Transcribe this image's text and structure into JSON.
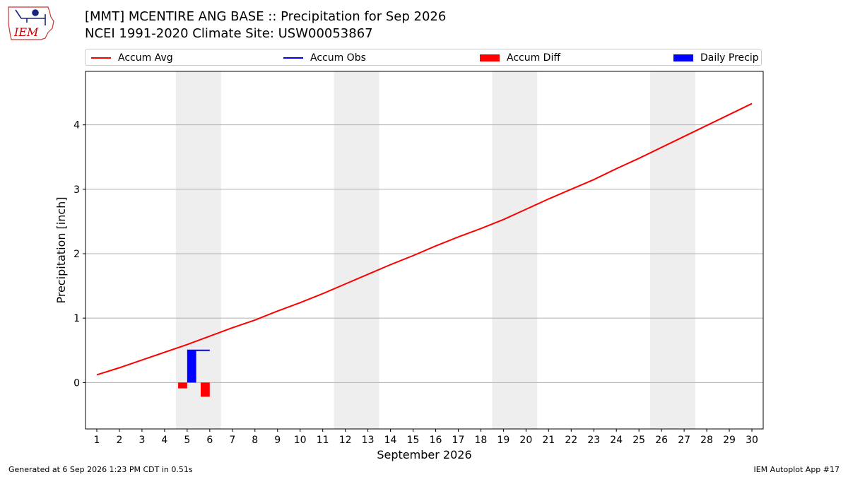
{
  "header": {
    "title_line1": "[MMT] MCENTIRE ANG BASE :: Precipitation for Sep 2026",
    "title_line2": "NCEI 1991-2020 Climate Site: USW00053867"
  },
  "logo": {
    "text": "IEM",
    "icon": "iem-iowa-weather-logo"
  },
  "legend": {
    "items": [
      {
        "label": "Accum Avg",
        "kind": "line",
        "color": "#ff0000"
      },
      {
        "label": "Accum Obs",
        "kind": "line",
        "color": "#0000ff"
      },
      {
        "label": "Accum Diff",
        "kind": "box",
        "color": "#ff0000"
      },
      {
        "label": "Daily Precip",
        "kind": "box",
        "color": "#0000ff"
      }
    ]
  },
  "footer": {
    "generated": "Generated at 6 Sep 2026 1:23 PM CDT in 0.51s",
    "app": "IEM Autoplot App #17"
  },
  "chart_data": {
    "type": "line",
    "ylabel": "Precipitation [inch]",
    "xlabel": "September 2026",
    "xlim": [
      0.5,
      30.5
    ],
    "ylim": [
      -0.72,
      4.83
    ],
    "x_ticks": [
      1,
      2,
      3,
      4,
      5,
      6,
      7,
      8,
      9,
      10,
      11,
      12,
      13,
      14,
      15,
      16,
      17,
      18,
      19,
      20,
      21,
      22,
      23,
      24,
      25,
      26,
      27,
      28,
      29,
      30
    ],
    "y_ticks": [
      0,
      1,
      2,
      3,
      4
    ],
    "grid": "horizontal",
    "legend_position": "top",
    "weekend_bands": [
      [
        4.5,
        6.5
      ],
      [
        11.5,
        13.5
      ],
      [
        18.5,
        20.5
      ],
      [
        25.5,
        27.5
      ]
    ],
    "accum_avg": {
      "name": "Accum Avg",
      "color": "#ff0000",
      "x": [
        1,
        2,
        3,
        4,
        5,
        6,
        7,
        8,
        9,
        10,
        11,
        12,
        13,
        14,
        15,
        16,
        17,
        18,
        19,
        20,
        21,
        22,
        23,
        24,
        25,
        26,
        27,
        28,
        29,
        30
      ],
      "values": [
        0.12,
        0.23,
        0.35,
        0.47,
        0.59,
        0.72,
        0.85,
        0.97,
        1.11,
        1.24,
        1.38,
        1.53,
        1.68,
        1.83,
        1.97,
        2.12,
        2.26,
        2.39,
        2.53,
        2.69,
        2.85,
        3.0,
        3.15,
        3.32,
        3.48,
        3.65,
        3.82,
        3.99,
        4.16,
        4.33
      ]
    },
    "accum_obs": {
      "name": "Accum Obs",
      "color": "#0000ff",
      "x": [
        5,
        6
      ],
      "values": [
        0.5,
        0.5
      ]
    },
    "accum_diff": {
      "name": "Accum Diff",
      "color": "#ff0000",
      "x": [
        4.8,
        5.8
      ],
      "values": [
        -0.09,
        -0.22
      ]
    },
    "daily_precip": {
      "name": "Daily Precip",
      "color": "#0000ff",
      "x": [
        5.2,
        6.2
      ],
      "values": [
        0.5,
        0.0
      ]
    }
  }
}
